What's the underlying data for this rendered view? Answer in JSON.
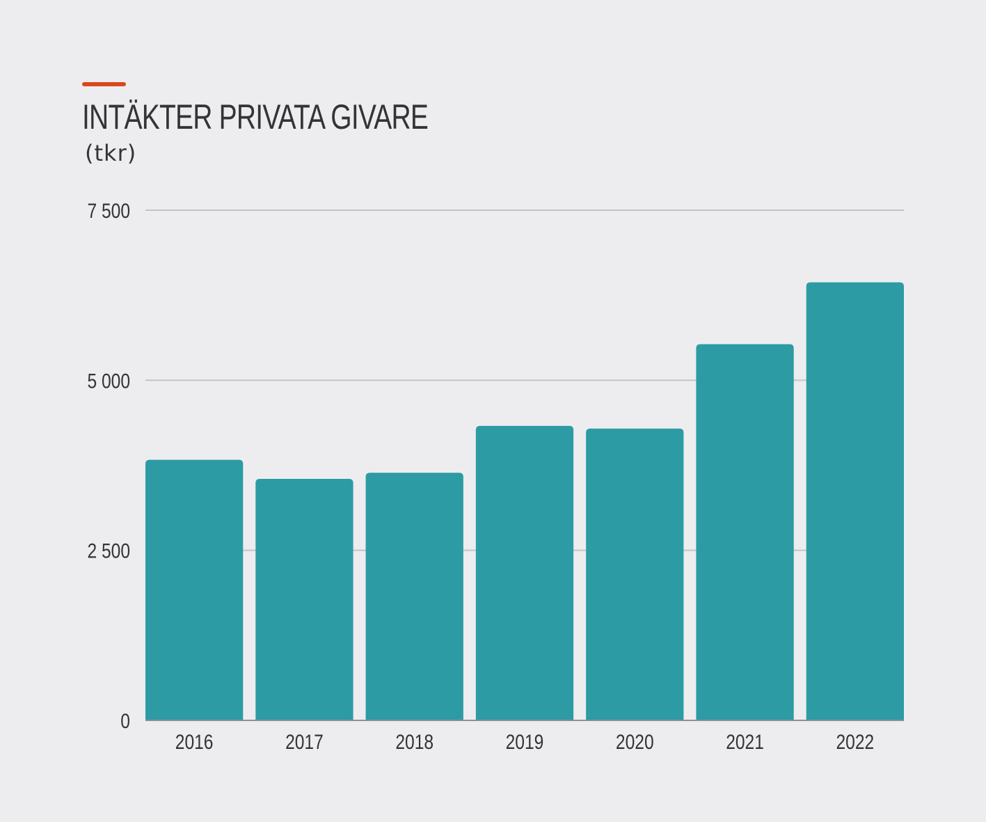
{
  "header": {
    "title": "INTÄKTER PRIVATA GIVARE",
    "unit": "(tkr)"
  },
  "colors": {
    "accent": "#d9481c",
    "bar": "#2c9ba4",
    "grid": "#c4c4c8",
    "background": "#ededef",
    "text": "#333338"
  },
  "chart_data": {
    "type": "bar",
    "title": "INTÄKTER PRIVATA GIVARE",
    "subtitle": "(tkr)",
    "xlabel": "",
    "ylabel": "",
    "categories": [
      "2016",
      "2017",
      "2018",
      "2019",
      "2020",
      "2021",
      "2022"
    ],
    "values": [
      3830,
      3550,
      3640,
      4330,
      4290,
      5530,
      6440
    ],
    "ylim": [
      0,
      7500
    ],
    "yticks": [
      0,
      2500,
      5000,
      7500
    ],
    "ytick_labels": [
      "0",
      "2 500",
      "5 000",
      "7 500"
    ],
    "grid": true,
    "legend": "none"
  }
}
